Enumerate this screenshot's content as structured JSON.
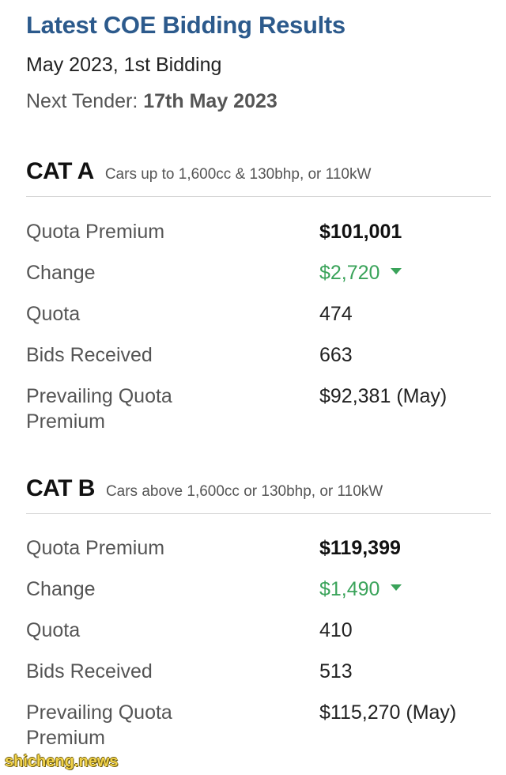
{
  "header": {
    "title": "Latest COE Bidding Results",
    "subtitle": "May 2023, 1st Bidding",
    "next_tender_label": "Next Tender: ",
    "next_tender_date": "17th May 2023"
  },
  "categories": [
    {
      "name": "CAT A",
      "description": "Cars up to 1,600cc & 130bhp, or 110kW",
      "rows": {
        "quota_premium": {
          "label": "Quota Premium",
          "value": "$101,001"
        },
        "change": {
          "label": "Change",
          "value": "$2,720",
          "direction": "down"
        },
        "quota": {
          "label": "Quota",
          "value": "474"
        },
        "bids_received": {
          "label": "Bids Received",
          "value": "663"
        },
        "pqp": {
          "label_line1": "Prevailing Quota",
          "label_line2": "Premium",
          "value": "$92,381 (May)"
        }
      }
    },
    {
      "name": "CAT B",
      "description": "Cars above 1,600cc or 130bhp, or 110kW",
      "rows": {
        "quota_premium": {
          "label": "Quota Premium",
          "value": "$119,399"
        },
        "change": {
          "label": "Change",
          "value": "$1,490",
          "direction": "down"
        },
        "quota": {
          "label": "Quota",
          "value": "410"
        },
        "bids_received": {
          "label": "Bids Received",
          "value": "513"
        },
        "pqp": {
          "label_line1": "Prevailing Quota",
          "label_line2": "Premium",
          "value": "$115,270 (May)"
        }
      }
    }
  ],
  "watermark": "shicheng.news",
  "colors": {
    "title": "#2c5a8c",
    "change_down": "#3aa35a"
  }
}
